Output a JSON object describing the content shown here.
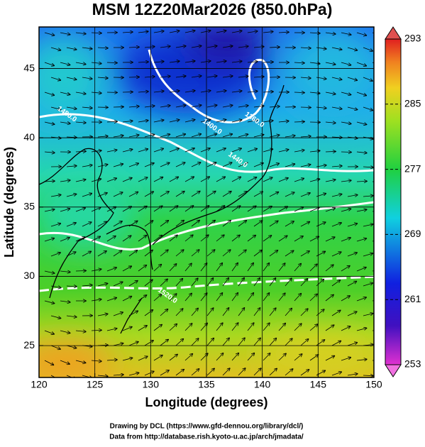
{
  "map": {
    "title": "MSM 12Z20Mar2026 (850.0hPa)",
    "xlabel": "Longitude (degrees)",
    "ylabel": "Latitude  (degrees)",
    "xlim": [
      120,
      150
    ],
    "ylim": [
      22.7,
      48
    ],
    "xticks": [
      120,
      125,
      130,
      135,
      140,
      145,
      150
    ],
    "yticks": [
      25,
      30,
      35,
      40,
      45
    ],
    "grid": true,
    "colorbar": {
      "lim": [
        253,
        293
      ],
      "ticks": [
        253,
        261,
        269,
        277,
        285,
        293
      ]
    },
    "contour_labels": [
      {
        "text": "1400.0",
        "lon": 135.5,
        "lat": 40.8
      },
      {
        "text": "1360.0",
        "lon": 139.3,
        "lat": 41.3
      },
      {
        "text": "1480.0",
        "lon": 122.5,
        "lat": 41.7
      },
      {
        "text": "1440.0",
        "lon": 137.8,
        "lat": 38.4
      },
      {
        "text": "1520.0",
        "lon": 131.5,
        "lat": 28.6
      }
    ],
    "credits": [
      "Drawing by DCL (https://www.gfd-dennou.org/library/dcl/)",
      "Data from http://database.rish.kyoto-u.ac.jp/arch/jmadata/"
    ]
  }
}
